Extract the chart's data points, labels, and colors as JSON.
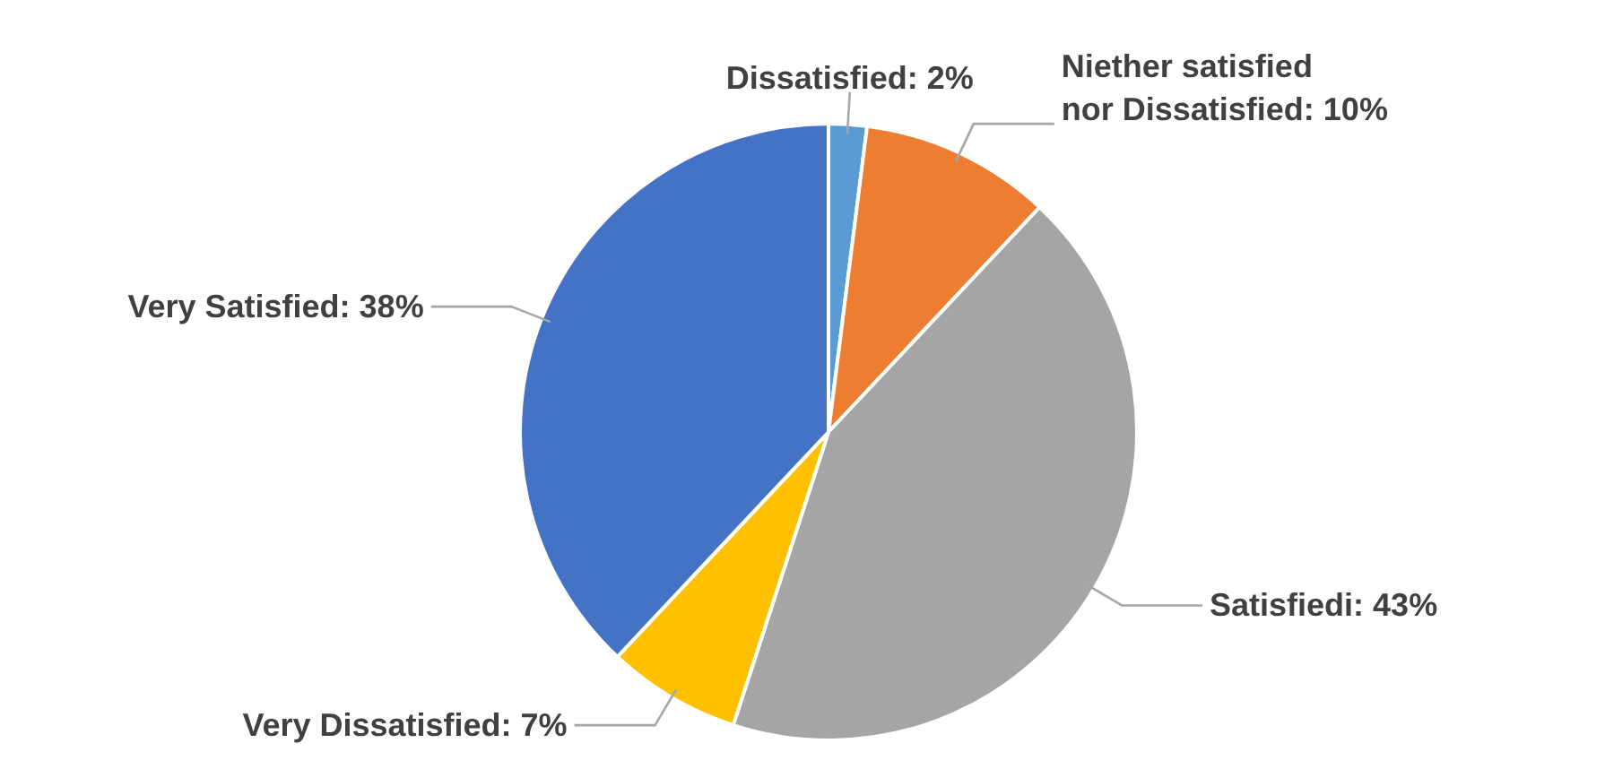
{
  "chart_data": {
    "type": "pie",
    "categories": [
      "Dissatisfied",
      "Niether satisfied nor Dissatisfied",
      "Satisfiedi",
      "Very Dissatisfied",
      "Very Satisfied"
    ],
    "values": [
      2,
      10,
      43,
      7,
      38
    ],
    "value_labels": [
      "2%",
      "10%",
      "43%",
      "7%",
      "38%"
    ],
    "colors": [
      "#5b9bd5",
      "#ed7d31",
      "#a5a5a5",
      "#ffc000",
      "#4472c4"
    ],
    "legend": false
  }
}
